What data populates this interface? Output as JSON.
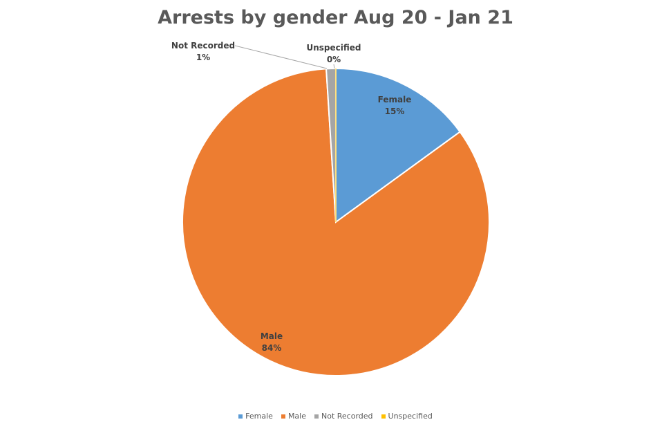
{
  "chart_data": {
    "type": "pie",
    "title": "Arrests by gender Aug 20 - Jan 21",
    "slices": [
      {
        "name": "Female",
        "value": 15,
        "label": "15%",
        "color": "#5B9BD5"
      },
      {
        "name": "Male",
        "value": 84,
        "label": "84%",
        "color": "#ED7D31"
      },
      {
        "name": "Not Recorded",
        "value": 1,
        "label": "1%",
        "color": "#A5A5A5"
      },
      {
        "name": "Unspecified",
        "value": 0,
        "label": "0%",
        "color": "#FFC000"
      }
    ],
    "legend_position": "bottom"
  }
}
